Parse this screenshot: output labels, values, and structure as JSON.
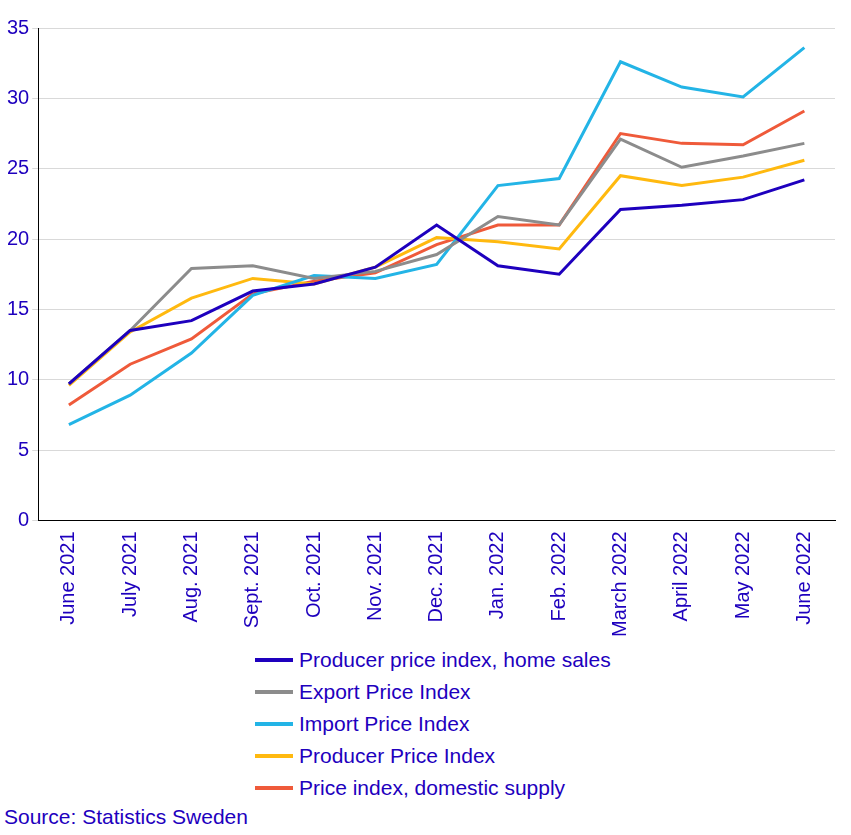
{
  "chart_data": {
    "type": "line",
    "categories": [
      "June 2021",
      "July 2021",
      "Aug. 2021",
      "Sept. 2021",
      "Oct. 2021",
      "Nov. 2021",
      "Dec. 2021",
      "Jan. 2022",
      "Feb. 2022",
      "March 2022",
      "April 2022",
      "May 2022",
      "June 2022"
    ],
    "series": [
      {
        "name": "Producer price index, home sales",
        "color": "#1e00be",
        "values": [
          9.7,
          13.5,
          14.2,
          16.3,
          16.8,
          18.0,
          21.0,
          18.1,
          17.5,
          22.1,
          22.4,
          22.8,
          24.2
        ]
      },
      {
        "name": "Export Price Index",
        "color": "#8c8c8c",
        "values": [
          9.7,
          13.5,
          17.9,
          18.1,
          17.2,
          17.7,
          18.9,
          21.6,
          21.0,
          27.1,
          25.1,
          25.9,
          26.8
        ]
      },
      {
        "name": "Import Price Index",
        "color": "#23b4e6",
        "values": [
          6.8,
          8.9,
          11.9,
          16.0,
          17.4,
          17.2,
          18.2,
          23.8,
          24.3,
          32.6,
          30.8,
          30.1,
          33.6
        ]
      },
      {
        "name": "Producer Price Index",
        "color": "#ffb90f",
        "values": [
          9.6,
          13.4,
          15.8,
          17.2,
          16.8,
          18.0,
          20.1,
          19.8,
          19.3,
          24.5,
          23.8,
          24.4,
          25.6
        ]
      },
      {
        "name": "Price index, domestic supply",
        "color": "#ef5a3a",
        "values": [
          8.2,
          11.1,
          12.9,
          16.1,
          17.0,
          17.6,
          19.6,
          21.0,
          21.0,
          27.5,
          26.8,
          26.7,
          29.1
        ]
      }
    ],
    "ylim": [
      0,
      35
    ],
    "yticks": [
      0,
      5,
      10,
      15,
      20,
      25,
      30,
      35
    ],
    "grid": true,
    "legend": "bottom",
    "source": "Source: Statistics Sweden"
  }
}
